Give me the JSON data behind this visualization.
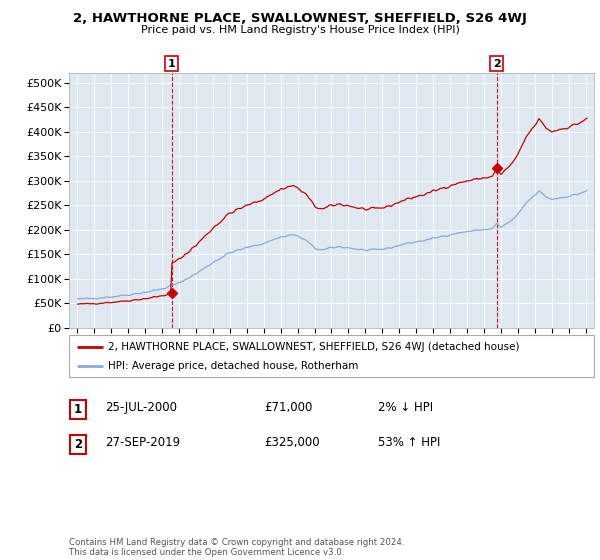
{
  "title": "2, HAWTHORNE PLACE, SWALLOWNEST, SHEFFIELD, S26 4WJ",
  "subtitle": "Price paid vs. HM Land Registry's House Price Index (HPI)",
  "yticks": [
    0,
    50000,
    100000,
    150000,
    200000,
    250000,
    300000,
    350000,
    400000,
    450000,
    500000
  ],
  "ylim": [
    0,
    520000
  ],
  "transaction1_year": 2000.556,
  "transaction1_price": 71000,
  "transaction2_year": 2019.747,
  "transaction2_price": 325000,
  "property_line_color": "#cc0000",
  "hpi_line_color": "#88aadd",
  "dashed_vline_color": "#cc0000",
  "background_color": "#ffffff",
  "plot_bg_color": "#dde8f0",
  "grid_color": "#ffffff",
  "legend_label_property": "2, HAWTHORNE PLACE, SWALLOWNEST, SHEFFIELD, S26 4WJ (detached house)",
  "legend_label_hpi": "HPI: Average price, detached house, Rotherham",
  "table_row1": [
    "1",
    "25-JUL-2000",
    "£71,000",
    "2% ↓ HPI"
  ],
  "table_row2": [
    "2",
    "27-SEP-2019",
    "£325,000",
    "53% ↑ HPI"
  ],
  "footer": "Contains HM Land Registry data © Crown copyright and database right 2024.\nThis data is licensed under the Open Government Licence v3.0."
}
